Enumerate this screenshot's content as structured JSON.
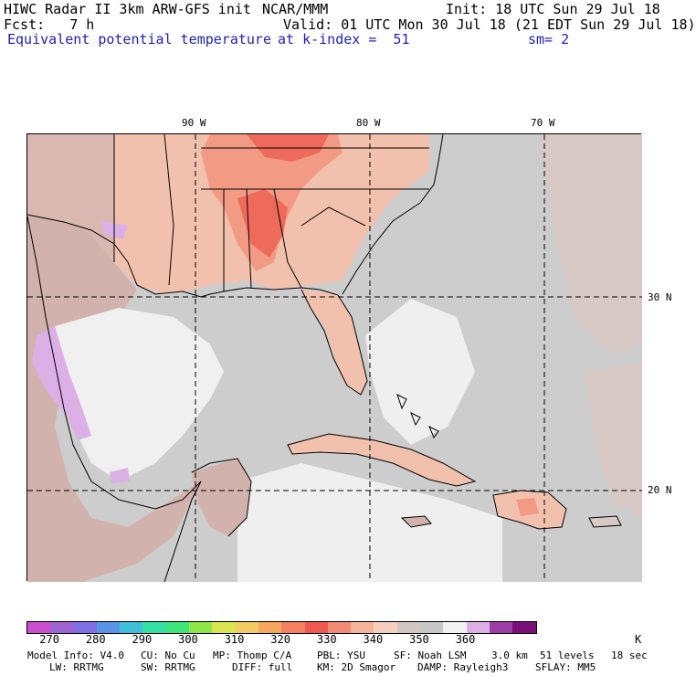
{
  "header": {
    "line1_left": "HIWC Radar II 3km ARW-GFS init",
    "line1_mid": "NCAR/MMM",
    "line1_right": "Init: 18 UTC Sun 29 Jul 18",
    "line2_left": "Fcst:   7 h",
    "line2_right": "Valid: 01 UTC Mon 30 Jul 18 (21 EDT Sun 29 Jul 18)",
    "line3_left": "Equivalent potential temperature",
    "line3_mid": "at k-index =  51",
    "line3_right": "sm= 2"
  },
  "axes": {
    "lon_labels": [
      "90 W",
      "80 W",
      "70 W"
    ],
    "lat_labels": [
      "30 N",
      "20 N"
    ]
  },
  "colorbar": {
    "colors": [
      "#c94fcf",
      "#a064d2",
      "#7f6ee6",
      "#5a93ea",
      "#3fbfd9",
      "#33e0a6",
      "#3fe67a",
      "#8fe64a",
      "#d8e650",
      "#f2cc60",
      "#f7a85e",
      "#f48060",
      "#ee5a50",
      "#f38a76",
      "#f6b49a",
      "#f5d0bf",
      "#d2c6c3",
      "#c8c8c8",
      "#f2f2f2",
      "#dcb0e6",
      "#9c3ca4",
      "#7a0f7a"
    ],
    "ticks": [
      "270",
      "280",
      "290",
      "300",
      "310",
      "320",
      "330",
      "340",
      "350",
      "360"
    ],
    "unit": "K"
  },
  "footer": {
    "line1": [
      "Model Info: V4.0",
      "CU: No Cu",
      "MP: Thomp C/A",
      "PBL: YSU",
      "SF: Noah LSM",
      "3.0 km",
      "51 levels",
      "18 sec"
    ],
    "line2": [
      "LW: RRTMG",
      "SW: RRTMG",
      "DIFF: full",
      "KM: 2D Smagor",
      "DAMP: Rayleigh3",
      "SFLAY: MM5"
    ]
  }
}
